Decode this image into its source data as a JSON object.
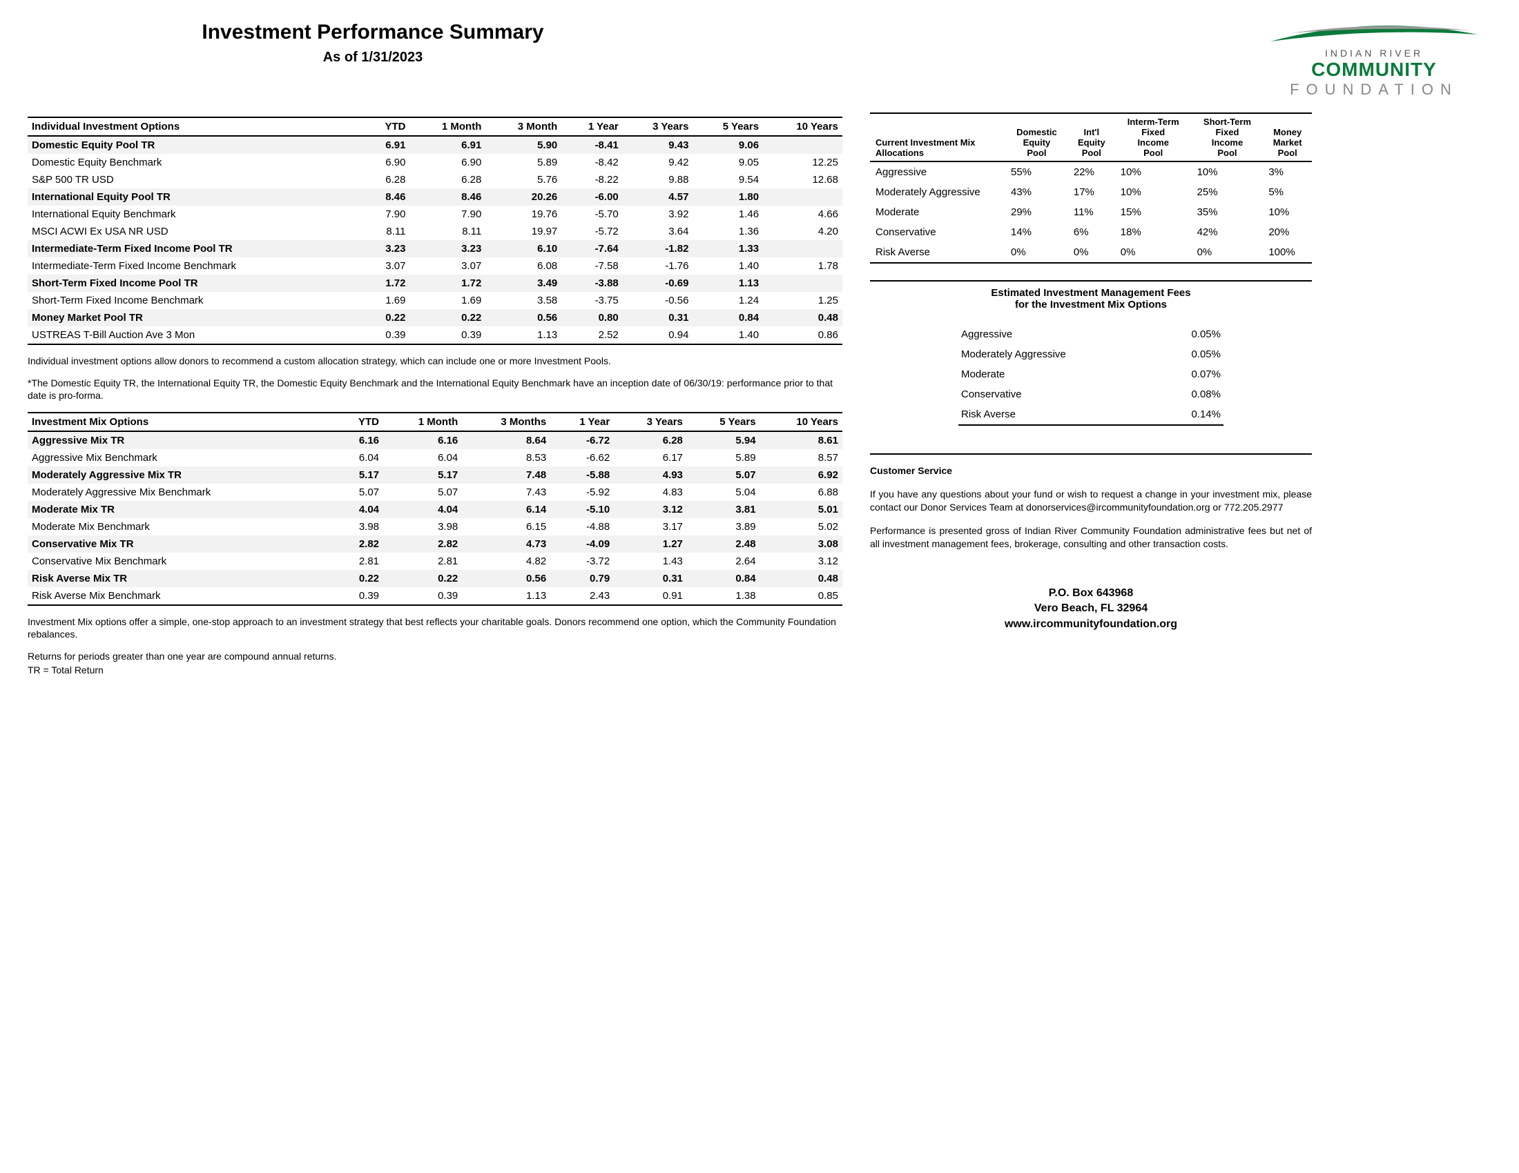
{
  "title": "Investment Performance Summary",
  "subtitle": "As of 1/31/2023",
  "logo": {
    "line1": "INDIAN RIVER",
    "line2": "COMMUNITY",
    "line3": "FOUNDATION"
  },
  "individual": {
    "heading": "Individual Investment Options",
    "cols": [
      "YTD",
      "1 Month",
      "3 Month",
      "1 Year",
      "3 Years",
      "5 Years",
      "10 Years"
    ],
    "rows": [
      {
        "bold": true,
        "label": "Domestic Equity Pool TR",
        "v": [
          "6.91",
          "6.91",
          "5.90",
          "-8.41",
          "9.43",
          "9.06",
          ""
        ]
      },
      {
        "bold": false,
        "label": "Domestic Equity Benchmark",
        "v": [
          "6.90",
          "6.90",
          "5.89",
          "-8.42",
          "9.42",
          "9.05",
          "12.25"
        ]
      },
      {
        "bold": false,
        "label": "S&P 500 TR USD",
        "v": [
          "6.28",
          "6.28",
          "5.76",
          "-8.22",
          "9.88",
          "9.54",
          "12.68"
        ]
      },
      {
        "bold": true,
        "label": "International Equity Pool TR",
        "v": [
          "8.46",
          "8.46",
          "20.26",
          "-6.00",
          "4.57",
          "1.80",
          ""
        ]
      },
      {
        "bold": false,
        "label": "International Equity Benchmark",
        "v": [
          "7.90",
          "7.90",
          "19.76",
          "-5.70",
          "3.92",
          "1.46",
          "4.66"
        ]
      },
      {
        "bold": false,
        "label": "MSCI ACWI Ex USA NR USD",
        "v": [
          "8.11",
          "8.11",
          "19.97",
          "-5.72",
          "3.64",
          "1.36",
          "4.20"
        ]
      },
      {
        "bold": true,
        "label": "Intermediate-Term Fixed Income Pool TR",
        "v": [
          "3.23",
          "3.23",
          "6.10",
          "-7.64",
          "-1.82",
          "1.33",
          ""
        ]
      },
      {
        "bold": false,
        "label": "Intermediate-Term Fixed Income Benchmark",
        "v": [
          "3.07",
          "3.07",
          "6.08",
          "-7.58",
          "-1.76",
          "1.40",
          "1.78"
        ]
      },
      {
        "bold": true,
        "label": "Short-Term Fixed Income Pool TR",
        "v": [
          "1.72",
          "1.72",
          "3.49",
          "-3.88",
          "-0.69",
          "1.13",
          ""
        ]
      },
      {
        "bold": false,
        "label": "Short-Term Fixed Income Benchmark",
        "v": [
          "1.69",
          "1.69",
          "3.58",
          "-3.75",
          "-0.56",
          "1.24",
          "1.25"
        ]
      },
      {
        "bold": true,
        "label": "Money Market Pool TR",
        "v": [
          "0.22",
          "0.22",
          "0.56",
          "0.80",
          "0.31",
          "0.84",
          "0.48"
        ]
      },
      {
        "bold": false,
        "label": "USTREAS T-Bill Auction Ave 3 Mon",
        "v": [
          "0.39",
          "0.39",
          "1.13",
          "2.52",
          "0.94",
          "1.40",
          "0.86"
        ]
      }
    ],
    "note1": "Individual investment options allow donors to recommend a custom allocation strategy, which can include one or more Investment Pools.",
    "note2": "*The Domestic Equity TR, the International Equity TR, the Domestic Equity Benchmark and the International Equity Benchmark have an inception date of 06/30/19: performance prior to that date is pro-forma."
  },
  "mix": {
    "heading": "Investment Mix Options",
    "cols": [
      "YTD",
      "1 Month",
      "3 Months",
      "1 Year",
      "3 Years",
      "5 Years",
      "10 Years"
    ],
    "rows": [
      {
        "bold": true,
        "label": "Aggressive Mix TR",
        "v": [
          "6.16",
          "6.16",
          "8.64",
          "-6.72",
          "6.28",
          "5.94",
          "8.61"
        ]
      },
      {
        "bold": false,
        "label": "Aggressive Mix Benchmark",
        "v": [
          "6.04",
          "6.04",
          "8.53",
          "-6.62",
          "6.17",
          "5.89",
          "8.57"
        ]
      },
      {
        "bold": true,
        "label": "Moderately Aggressive Mix TR",
        "v": [
          "5.17",
          "5.17",
          "7.48",
          "-5.88",
          "4.93",
          "5.07",
          "6.92"
        ]
      },
      {
        "bold": false,
        "label": "Moderately Aggressive Mix Benchmark",
        "v": [
          "5.07",
          "5.07",
          "7.43",
          "-5.92",
          "4.83",
          "5.04",
          "6.88"
        ]
      },
      {
        "bold": true,
        "label": "Moderate Mix TR",
        "v": [
          "4.04",
          "4.04",
          "6.14",
          "-5.10",
          "3.12",
          "3.81",
          "5.01"
        ]
      },
      {
        "bold": false,
        "label": "Moderate Mix Benchmark",
        "v": [
          "3.98",
          "3.98",
          "6.15",
          "-4.88",
          "3.17",
          "3.89",
          "5.02"
        ]
      },
      {
        "bold": true,
        "label": "Conservative Mix TR",
        "v": [
          "2.82",
          "2.82",
          "4.73",
          "-4.09",
          "1.27",
          "2.48",
          "3.08"
        ]
      },
      {
        "bold": false,
        "label": "Conservative Mix Benchmark",
        "v": [
          "2.81",
          "2.81",
          "4.82",
          "-3.72",
          "1.43",
          "2.64",
          "3.12"
        ]
      },
      {
        "bold": true,
        "label": "Risk Averse Mix TR",
        "v": [
          "0.22",
          "0.22",
          "0.56",
          "0.79",
          "0.31",
          "0.84",
          "0.48"
        ]
      },
      {
        "bold": false,
        "label": "Risk Averse Mix Benchmark",
        "v": [
          "0.39",
          "0.39",
          "1.13",
          "2.43",
          "0.91",
          "1.38",
          "0.85"
        ]
      }
    ],
    "note1": "Investment Mix options offer a simple, one-stop approach to an investment strategy that best reflects your charitable goals. Donors recommend one option, which the Community Foundation rebalances.",
    "note2": "Returns for periods greater than one year are compound annual returns.",
    "note3": "TR = Total Return"
  },
  "alloc": {
    "heading": "Current Investment Mix Allocations",
    "cols": [
      "Domestic Equity Pool",
      "Int'l Equity Pool",
      "Interm-Term Fixed Income Pool",
      "Short-Term Fixed Income Pool",
      "Money Market Pool"
    ],
    "rows": [
      {
        "label": "Aggressive",
        "v": [
          "55%",
          "22%",
          "10%",
          "10%",
          "3%"
        ]
      },
      {
        "label": "Moderately Aggressive",
        "v": [
          "43%",
          "17%",
          "10%",
          "25%",
          "5%"
        ]
      },
      {
        "label": "Moderate",
        "v": [
          "29%",
          "11%",
          "15%",
          "35%",
          "10%"
        ]
      },
      {
        "label": "Conservative",
        "v": [
          "14%",
          "6%",
          "18%",
          "42%",
          "20%"
        ]
      },
      {
        "label": "Risk Averse",
        "v": [
          "0%",
          "0%",
          "0%",
          "0%",
          "100%"
        ]
      }
    ]
  },
  "fees": {
    "title1": "Estimated Investment Management Fees",
    "title2": "for the Investment Mix Options",
    "rows": [
      {
        "label": "Aggressive",
        "v": "0.05%"
      },
      {
        "label": "Moderately Aggressive",
        "v": "0.05%"
      },
      {
        "label": "Moderate",
        "v": "0.07%"
      },
      {
        "label": "Conservative",
        "v": "0.08%"
      },
      {
        "label": "Risk Averse",
        "v": "0.14%"
      }
    ]
  },
  "cs": {
    "heading": "Customer Service",
    "p1": "If you have any questions about your fund or wish to request a change in your investment mix, please contact our Donor Services Team at donorservices@ircommunityfoundation.org or 772.205.2977",
    "p2": "Performance is presented gross of Indian River Community Foundation administrative fees but net of all investment management fees, brokerage, consulting and other transaction costs."
  },
  "footer": {
    "l1": "P.O. Box 643968",
    "l2": "Vero Beach, FL  32964",
    "l3": "www.ircommunityfoundation.org"
  }
}
